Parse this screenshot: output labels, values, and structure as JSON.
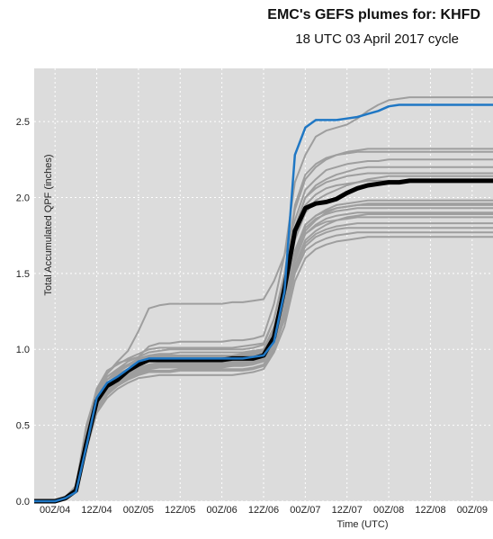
{
  "title": "EMC's GEFS plumes for: KHFD",
  "subtitle": "18 UTC 03 April 2017 cycle",
  "colors": {
    "background": "#dcdcdc",
    "member": "#9e9e9e",
    "mean": "#000000",
    "control": "#1f77c4",
    "grid": "#ffffff"
  },
  "chart_data": {
    "type": "line",
    "title": "EMC's GEFS plumes for: KHFD",
    "subtitle": "18 UTC 03 April 2017 cycle",
    "xlabel": "Time (UTC)",
    "ylabel": "Total Accumulated QPF (inches)",
    "x_unit": "forecast hours after 18 UTC 03 April 2017",
    "xlim": [
      0,
      132
    ],
    "ylim": [
      0,
      2.85
    ],
    "grid": true,
    "xticks": [
      {
        "x": 6,
        "label": "00Z/04"
      },
      {
        "x": 18,
        "label": "12Z/04"
      },
      {
        "x": 30,
        "label": "00Z/05"
      },
      {
        "x": 42,
        "label": "12Z/05"
      },
      {
        "x": 54,
        "label": "00Z/06"
      },
      {
        "x": 66,
        "label": "12Z/06"
      },
      {
        "x": 78,
        "label": "00Z/07"
      },
      {
        "x": 90,
        "label": "12Z/07"
      },
      {
        "x": 102,
        "label": "00Z/08"
      },
      {
        "x": 114,
        "label": "12Z/08"
      },
      {
        "x": 126,
        "label": "00Z/09"
      }
    ],
    "yticks": [
      {
        "y": 0.0,
        "label": "0.0"
      },
      {
        "y": 0.5,
        "label": "0.5"
      },
      {
        "y": 1.0,
        "label": "1.0"
      },
      {
        "y": 1.5,
        "label": "1.5"
      },
      {
        "y": 2.0,
        "label": "2.0"
      },
      {
        "y": 2.5,
        "label": "2.5"
      }
    ],
    "x": [
      0,
      3,
      6,
      9,
      12,
      15,
      18,
      21,
      24,
      27,
      30,
      33,
      36,
      39,
      42,
      45,
      48,
      51,
      54,
      57,
      60,
      63,
      66,
      69,
      72,
      75,
      78,
      81,
      84,
      87,
      90,
      93,
      96,
      99,
      102,
      105,
      108,
      111,
      114,
      117,
      120,
      123,
      126,
      129,
      132
    ],
    "members": [
      {
        "values": [
          0,
          0,
          0,
          0.02,
          0.1,
          0.5,
          0.73,
          0.84,
          0.92,
          0.99,
          1.12,
          1.27,
          1.29,
          1.3,
          1.3,
          1.3,
          1.3,
          1.3,
          1.3,
          1.31,
          1.31,
          1.32,
          1.33,
          1.45,
          1.62,
          1.85,
          2.05,
          2.12,
          2.18,
          2.2,
          2.22,
          2.23,
          2.24,
          2.24,
          2.25,
          2.25,
          2.25,
          2.25,
          2.25,
          2.25,
          2.25,
          2.25,
          2.25,
          2.25,
          2.25
        ]
      },
      {
        "values": [
          0,
          0,
          0,
          0.02,
          0.06,
          0.42,
          0.7,
          0.84,
          0.91,
          0.93,
          0.95,
          1.02,
          1.04,
          1.04,
          1.05,
          1.05,
          1.05,
          1.05,
          1.05,
          1.06,
          1.06,
          1.07,
          1.09,
          1.3,
          1.62,
          2.1,
          2.28,
          2.4,
          2.44,
          2.46,
          2.48,
          2.52,
          2.57,
          2.61,
          2.64,
          2.65,
          2.66,
          2.66,
          2.66,
          2.66,
          2.66,
          2.66,
          2.66,
          2.66,
          2.66
        ]
      },
      {
        "values": [
          0,
          0,
          0,
          0.03,
          0.09,
          0.45,
          0.72,
          0.82,
          0.87,
          0.92,
          0.95,
          0.98,
          0.99,
          1.0,
          1.0,
          1.0,
          1.0,
          1.0,
          1.0,
          1.0,
          1.0,
          1.01,
          1.03,
          1.2,
          1.5,
          1.92,
          2.12,
          2.2,
          2.25,
          2.28,
          2.3,
          2.31,
          2.32,
          2.32,
          2.32,
          2.32,
          2.32,
          2.32,
          2.32,
          2.32,
          2.32,
          2.32,
          2.32,
          2.32,
          2.32
        ]
      },
      {
        "values": [
          0,
          0,
          0,
          0.02,
          0.08,
          0.4,
          0.68,
          0.8,
          0.86,
          0.9,
          0.94,
          0.96,
          0.97,
          0.97,
          0.98,
          0.98,
          0.98,
          0.98,
          0.98,
          0.98,
          0.98,
          0.99,
          1.0,
          1.15,
          1.38,
          1.8,
          2.0,
          2.08,
          2.12,
          2.15,
          2.17,
          2.19,
          2.2,
          2.2,
          2.2,
          2.2,
          2.2,
          2.2,
          2.2,
          2.2,
          2.2,
          2.2,
          2.2,
          2.2,
          2.2
        ]
      },
      {
        "values": [
          0,
          0,
          0,
          0.02,
          0.07,
          0.38,
          0.65,
          0.76,
          0.82,
          0.86,
          0.9,
          0.93,
          0.94,
          0.94,
          0.95,
          0.95,
          0.95,
          0.95,
          0.95,
          0.95,
          0.95,
          0.96,
          0.98,
          1.1,
          1.35,
          1.72,
          1.9,
          1.98,
          2.02,
          2.05,
          2.08,
          2.1,
          2.12,
          2.13,
          2.14,
          2.14,
          2.14,
          2.14,
          2.14,
          2.14,
          2.14,
          2.14,
          2.14,
          2.14,
          2.14
        ]
      },
      {
        "values": [
          0,
          0,
          0,
          0.02,
          0.08,
          0.42,
          0.7,
          0.8,
          0.84,
          0.87,
          0.9,
          0.92,
          0.92,
          0.92,
          0.93,
          0.93,
          0.93,
          0.93,
          0.93,
          0.93,
          0.94,
          0.95,
          0.97,
          1.08,
          1.3,
          1.65,
          1.82,
          1.88,
          1.91,
          1.93,
          1.94,
          1.95,
          1.95,
          1.95,
          1.95,
          1.95,
          1.95,
          1.95,
          1.95,
          1.95,
          1.95,
          1.95,
          1.95,
          1.95,
          1.95
        ]
      },
      {
        "values": [
          0,
          0,
          0,
          0.02,
          0.06,
          0.36,
          0.62,
          0.73,
          0.79,
          0.83,
          0.86,
          0.88,
          0.89,
          0.89,
          0.9,
          0.9,
          0.9,
          0.9,
          0.9,
          0.9,
          0.9,
          0.91,
          0.93,
          1.05,
          1.25,
          1.55,
          1.72,
          1.78,
          1.82,
          1.85,
          1.87,
          1.88,
          1.89,
          1.89,
          1.89,
          1.89,
          1.89,
          1.89,
          1.89,
          1.89,
          1.89,
          1.89,
          1.89,
          1.89,
          1.89
        ]
      },
      {
        "values": [
          0,
          0,
          0,
          0.02,
          0.07,
          0.4,
          0.68,
          0.78,
          0.83,
          0.86,
          0.88,
          0.89,
          0.9,
          0.9,
          0.9,
          0.9,
          0.9,
          0.9,
          0.9,
          0.9,
          0.91,
          0.92,
          0.94,
          1.06,
          1.28,
          1.6,
          1.76,
          1.81,
          1.84,
          1.85,
          1.86,
          1.87,
          1.87,
          1.87,
          1.87,
          1.87,
          1.87,
          1.87,
          1.87,
          1.87,
          1.87,
          1.87,
          1.87,
          1.87,
          1.87
        ]
      },
      {
        "values": [
          0,
          0,
          0,
          0.02,
          0.06,
          0.35,
          0.6,
          0.7,
          0.76,
          0.8,
          0.83,
          0.85,
          0.85,
          0.85,
          0.86,
          0.86,
          0.86,
          0.86,
          0.86,
          0.86,
          0.86,
          0.87,
          0.89,
          1.0,
          1.2,
          1.5,
          1.65,
          1.7,
          1.73,
          1.75,
          1.76,
          1.77,
          1.77,
          1.77,
          1.77,
          1.77,
          1.77,
          1.77,
          1.77,
          1.77,
          1.77,
          1.77,
          1.77,
          1.77,
          1.77
        ]
      },
      {
        "values": [
          0,
          0,
          0,
          0.02,
          0.06,
          0.34,
          0.58,
          0.68,
          0.74,
          0.78,
          0.81,
          0.82,
          0.83,
          0.83,
          0.83,
          0.83,
          0.83,
          0.83,
          0.83,
          0.83,
          0.84,
          0.85,
          0.87,
          0.98,
          1.15,
          1.45,
          1.6,
          1.66,
          1.69,
          1.71,
          1.72,
          1.73,
          1.74,
          1.74,
          1.74,
          1.74,
          1.74,
          1.74,
          1.74,
          1.74,
          1.74,
          1.74,
          1.74,
          1.74,
          1.74
        ]
      },
      {
        "values": [
          0,
          0,
          0,
          0.03,
          0.1,
          0.48,
          0.74,
          0.86,
          0.9,
          0.94,
          0.97,
          1.0,
          1.01,
          1.01,
          1.01,
          1.01,
          1.01,
          1.01,
          1.01,
          1.01,
          1.02,
          1.03,
          1.04,
          1.2,
          1.48,
          1.95,
          2.15,
          2.22,
          2.26,
          2.28,
          2.29,
          2.3,
          2.3,
          2.3,
          2.3,
          2.3,
          2.3,
          2.3,
          2.3,
          2.3,
          2.3,
          2.3,
          2.3,
          2.3,
          2.3
        ]
      },
      {
        "values": [
          0,
          0,
          0,
          0.02,
          0.07,
          0.38,
          0.66,
          0.76,
          0.81,
          0.85,
          0.88,
          0.9,
          0.91,
          0.91,
          0.91,
          0.91,
          0.91,
          0.91,
          0.91,
          0.91,
          0.92,
          0.93,
          0.95,
          1.08,
          1.3,
          1.62,
          1.8,
          1.86,
          1.89,
          1.91,
          1.92,
          1.93,
          1.93,
          1.93,
          1.93,
          1.93,
          1.93,
          1.93,
          1.93,
          1.93,
          1.93,
          1.93,
          1.93,
          1.93,
          1.93
        ]
      },
      {
        "values": [
          0,
          0,
          0,
          0.02,
          0.06,
          0.36,
          0.62,
          0.72,
          0.78,
          0.82,
          0.85,
          0.87,
          0.88,
          0.88,
          0.88,
          0.88,
          0.88,
          0.88,
          0.88,
          0.89,
          0.89,
          0.9,
          0.92,
          1.02,
          1.22,
          1.54,
          1.7,
          1.76,
          1.79,
          1.81,
          1.82,
          1.83,
          1.83,
          1.83,
          1.83,
          1.83,
          1.83,
          1.83,
          1.83,
          1.83,
          1.83,
          1.83,
          1.83,
          1.83,
          1.83
        ]
      },
      {
        "values": [
          0,
          0,
          0,
          0.02,
          0.08,
          0.42,
          0.7,
          0.8,
          0.85,
          0.89,
          0.92,
          0.94,
          0.95,
          0.95,
          0.95,
          0.95,
          0.95,
          0.95,
          0.95,
          0.95,
          0.96,
          0.97,
          0.99,
          1.12,
          1.35,
          1.75,
          1.95,
          2.02,
          2.06,
          2.08,
          2.09,
          2.1,
          2.11,
          2.11,
          2.11,
          2.11,
          2.11,
          2.11,
          2.11,
          2.11,
          2.11,
          2.11,
          2.11,
          2.11,
          2.11
        ]
      },
      {
        "values": [
          0,
          0,
          0,
          0.02,
          0.07,
          0.4,
          0.67,
          0.77,
          0.82,
          0.85,
          0.87,
          0.88,
          0.89,
          0.89,
          0.89,
          0.89,
          0.89,
          0.89,
          0.89,
          0.89,
          0.9,
          0.91,
          0.93,
          1.04,
          1.25,
          1.58,
          1.76,
          1.82,
          1.86,
          1.88,
          1.89,
          1.9,
          1.9,
          1.9,
          1.9,
          1.9,
          1.9,
          1.9,
          1.9,
          1.9,
          1.9,
          1.9,
          1.9,
          1.9,
          1.9
        ]
      },
      {
        "values": [
          0,
          0,
          0,
          0.02,
          0.06,
          0.37,
          0.64,
          0.74,
          0.8,
          0.84,
          0.87,
          0.9,
          0.91,
          0.91,
          0.92,
          0.92,
          0.92,
          0.92,
          0.92,
          0.92,
          0.92,
          0.93,
          0.95,
          1.06,
          1.27,
          1.6,
          1.78,
          1.85,
          1.9,
          1.93,
          1.94,
          1.95,
          1.96,
          1.96,
          1.96,
          1.96,
          1.96,
          1.96,
          1.96,
          1.96,
          1.96,
          1.96,
          1.96,
          1.96,
          1.96
        ]
      },
      {
        "values": [
          0,
          0,
          0,
          0.02,
          0.07,
          0.39,
          0.66,
          0.76,
          0.82,
          0.86,
          0.9,
          0.92,
          0.93,
          0.93,
          0.94,
          0.94,
          0.94,
          0.94,
          0.94,
          0.94,
          0.94,
          0.95,
          0.97,
          1.08,
          1.3,
          1.64,
          1.82,
          1.88,
          1.92,
          1.95,
          1.96,
          1.97,
          1.98,
          1.98,
          1.98,
          1.98,
          1.98,
          1.98,
          1.98,
          1.98,
          1.98,
          1.98,
          1.98,
          1.98,
          1.98
        ]
      },
      {
        "values": [
          0,
          0,
          0,
          0.02,
          0.06,
          0.34,
          0.6,
          0.71,
          0.77,
          0.81,
          0.84,
          0.86,
          0.86,
          0.86,
          0.87,
          0.87,
          0.87,
          0.87,
          0.87,
          0.87,
          0.87,
          0.88,
          0.9,
          1.0,
          1.2,
          1.52,
          1.68,
          1.74,
          1.77,
          1.79,
          1.8,
          1.8,
          1.8,
          1.8,
          1.8,
          1.8,
          1.8,
          1.8,
          1.8,
          1.8,
          1.8,
          1.8,
          1.8,
          1.8,
          1.8
        ]
      },
      {
        "values": [
          0,
          0,
          0,
          0.02,
          0.08,
          0.44,
          0.72,
          0.82,
          0.87,
          0.9,
          0.93,
          0.95,
          0.96,
          0.96,
          0.96,
          0.96,
          0.96,
          0.96,
          0.96,
          0.96,
          0.97,
          0.98,
          1.0,
          1.14,
          1.38,
          1.8,
          2.0,
          2.06,
          2.1,
          2.12,
          2.14,
          2.15,
          2.16,
          2.16,
          2.16,
          2.16,
          2.16,
          2.16,
          2.16,
          2.16,
          2.16,
          2.16,
          2.16,
          2.16,
          2.16
        ]
      }
    ],
    "mean": {
      "values": [
        0,
        0,
        0,
        0.02,
        0.07,
        0.38,
        0.66,
        0.76,
        0.8,
        0.86,
        0.9,
        0.93,
        0.93,
        0.93,
        0.93,
        0.93,
        0.93,
        0.93,
        0.93,
        0.94,
        0.94,
        0.94,
        0.96,
        1.08,
        1.4,
        1.78,
        1.93,
        1.96,
        1.97,
        1.99,
        2.03,
        2.06,
        2.08,
        2.09,
        2.1,
        2.1,
        2.11,
        2.11,
        2.11,
        2.11,
        2.11,
        2.11,
        2.11,
        2.11,
        2.11
      ]
    },
    "control": {
      "values": [
        0,
        0,
        0,
        0.02,
        0.06,
        0.36,
        0.68,
        0.78,
        0.82,
        0.87,
        0.92,
        0.94,
        0.94,
        0.94,
        0.94,
        0.94,
        0.94,
        0.94,
        0.94,
        0.94,
        0.94,
        0.95,
        0.96,
        1.05,
        1.38,
        2.28,
        2.46,
        2.51,
        2.51,
        2.51,
        2.52,
        2.53,
        2.55,
        2.57,
        2.6,
        2.61,
        2.61,
        2.61,
        2.61,
        2.61,
        2.61,
        2.61,
        2.61,
        2.61,
        2.61
      ]
    }
  }
}
